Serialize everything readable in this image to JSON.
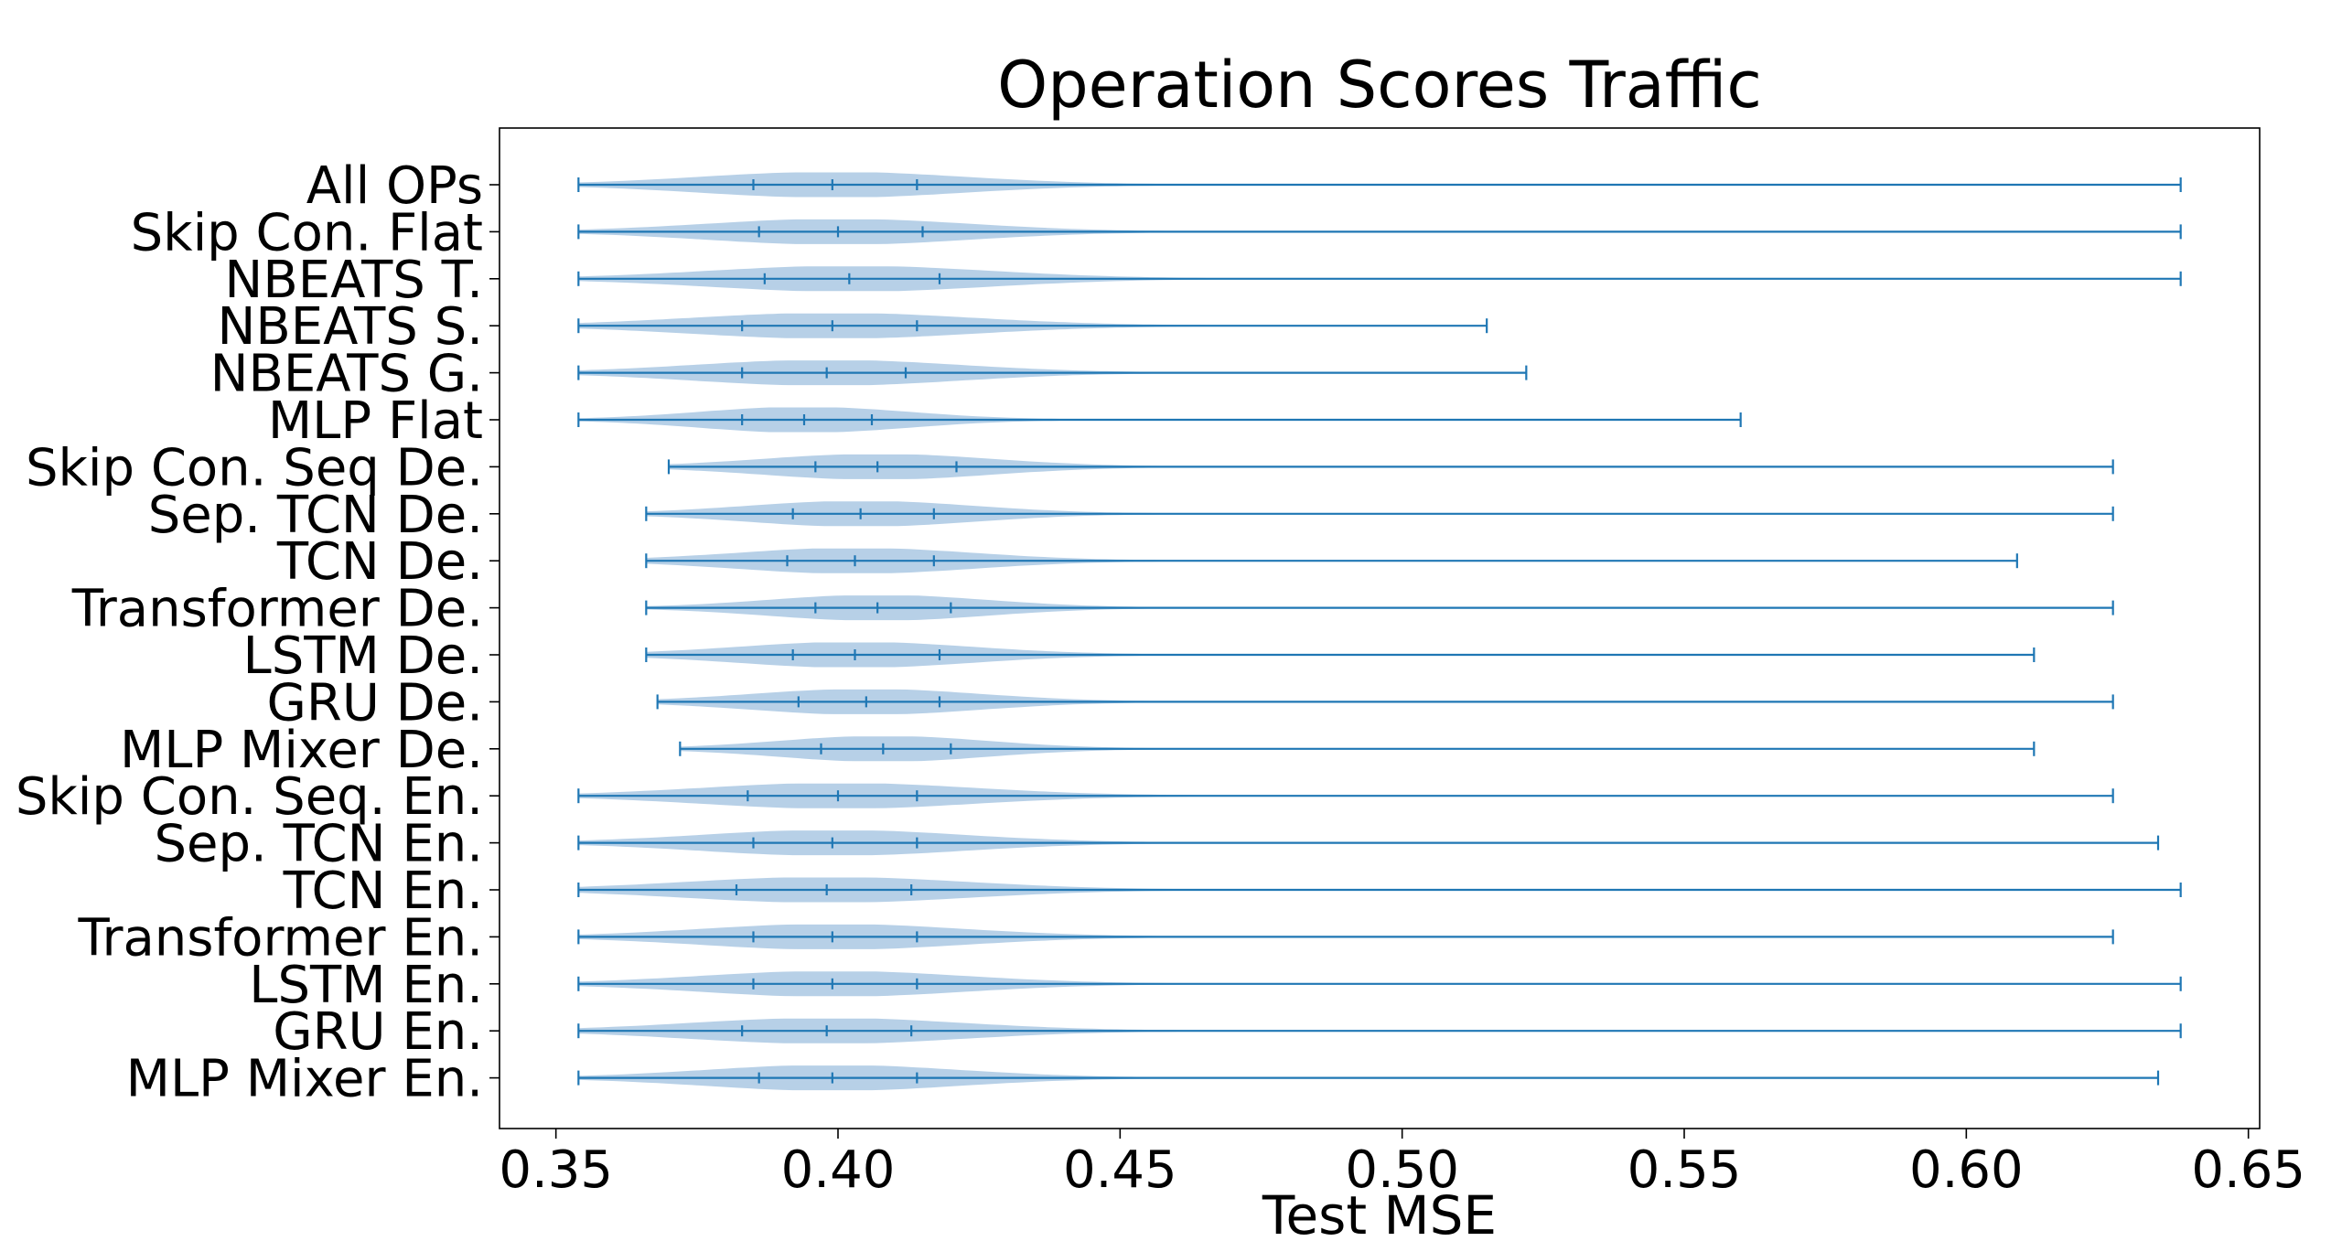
{
  "chart_data": {
    "type": "violin",
    "title": "Operation Scores Traffic",
    "xlabel": "Test MSE",
    "ylabel": "",
    "xlim": [
      0.34,
      0.652
    ],
    "xticks": [
      0.35,
      0.4,
      0.45,
      0.5,
      0.55,
      0.6,
      0.65
    ],
    "xtick_labels": [
      "0.35",
      "0.40",
      "0.45",
      "0.50",
      "0.55",
      "0.60",
      "0.65"
    ],
    "grid": false,
    "colors": {
      "body": "#aac8e3",
      "line": "#1f77b4",
      "axis": "#000000"
    },
    "categories": [
      "All OPs",
      "Skip Con. Flat",
      "NBEATS T.",
      "NBEATS S.",
      "NBEATS G.",
      "MLP Flat",
      "Skip Con. Seq De.",
      "Sep. TCN De.",
      "TCN De.",
      "Transformer De.",
      "LSTM De.",
      "GRU De.",
      "MLP Mixer De.",
      "Skip Con. Seq. En.",
      "Sep. TCN En.",
      "TCN En.",
      "Transformer En.",
      "LSTM En.",
      "GRU En.",
      "MLP Mixer En."
    ],
    "series": [
      {
        "category": "All OPs",
        "min": 0.354,
        "q1": 0.385,
        "median": 0.399,
        "q3": 0.414,
        "max": 0.638
      },
      {
        "category": "Skip Con. Flat",
        "min": 0.354,
        "q1": 0.386,
        "median": 0.4,
        "q3": 0.415,
        "max": 0.638
      },
      {
        "category": "NBEATS T.",
        "min": 0.354,
        "q1": 0.387,
        "median": 0.402,
        "q3": 0.418,
        "max": 0.638
      },
      {
        "category": "NBEATS S.",
        "min": 0.354,
        "q1": 0.383,
        "median": 0.399,
        "q3": 0.414,
        "max": 0.515
      },
      {
        "category": "NBEATS G.",
        "min": 0.354,
        "q1": 0.383,
        "median": 0.398,
        "q3": 0.412,
        "max": 0.522
      },
      {
        "category": "MLP Flat",
        "min": 0.354,
        "q1": 0.383,
        "median": 0.394,
        "q3": 0.406,
        "max": 0.56
      },
      {
        "category": "Skip Con. Seq De.",
        "min": 0.37,
        "q1": 0.396,
        "median": 0.407,
        "q3": 0.421,
        "max": 0.626
      },
      {
        "category": "Sep. TCN De.",
        "min": 0.366,
        "q1": 0.392,
        "median": 0.404,
        "q3": 0.417,
        "max": 0.626
      },
      {
        "category": "TCN De.",
        "min": 0.366,
        "q1": 0.391,
        "median": 0.403,
        "q3": 0.417,
        "max": 0.609
      },
      {
        "category": "Transformer De.",
        "min": 0.366,
        "q1": 0.396,
        "median": 0.407,
        "q3": 0.42,
        "max": 0.626
      },
      {
        "category": "LSTM De.",
        "min": 0.366,
        "q1": 0.392,
        "median": 0.403,
        "q3": 0.418,
        "max": 0.612
      },
      {
        "category": "GRU De.",
        "min": 0.368,
        "q1": 0.393,
        "median": 0.405,
        "q3": 0.418,
        "max": 0.626
      },
      {
        "category": "MLP Mixer De.",
        "min": 0.372,
        "q1": 0.397,
        "median": 0.408,
        "q3": 0.42,
        "max": 0.612
      },
      {
        "category": "Skip Con. Seq. En.",
        "min": 0.354,
        "q1": 0.384,
        "median": 0.4,
        "q3": 0.414,
        "max": 0.626
      },
      {
        "category": "Sep. TCN En.",
        "min": 0.354,
        "q1": 0.385,
        "median": 0.399,
        "q3": 0.414,
        "max": 0.634
      },
      {
        "category": "TCN En.",
        "min": 0.354,
        "q1": 0.382,
        "median": 0.398,
        "q3": 0.413,
        "max": 0.638
      },
      {
        "category": "Transformer En.",
        "min": 0.354,
        "q1": 0.385,
        "median": 0.399,
        "q3": 0.414,
        "max": 0.626
      },
      {
        "category": "LSTM En.",
        "min": 0.354,
        "q1": 0.385,
        "median": 0.399,
        "q3": 0.414,
        "max": 0.638
      },
      {
        "category": "GRU En.",
        "min": 0.354,
        "q1": 0.383,
        "median": 0.398,
        "q3": 0.413,
        "max": 0.638
      },
      {
        "category": "MLP Mixer En.",
        "min": 0.354,
        "q1": 0.386,
        "median": 0.399,
        "q3": 0.414,
        "max": 0.634
      }
    ]
  }
}
